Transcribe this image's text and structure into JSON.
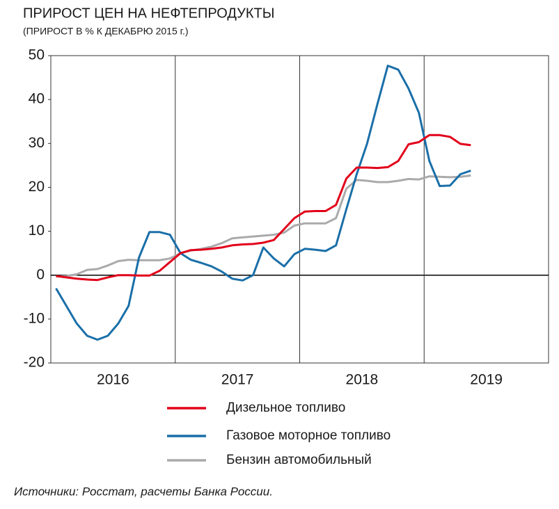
{
  "chart_data": {
    "type": "line",
    "title": "ПРИРОСТ ЦЕН НА НЕФТЕПРОДУКТЫ",
    "subtitle": "(ПРИРОСТ В % К ДЕКАБРЮ 2015 г.)",
    "source": "Источники: Росстат, расчеты Банка России.",
    "x": [
      2016.042,
      2016.125,
      2016.208,
      2016.292,
      2016.375,
      2016.458,
      2016.542,
      2016.625,
      2016.708,
      2016.792,
      2016.875,
      2016.958,
      2017.042,
      2017.125,
      2017.208,
      2017.292,
      2017.375,
      2017.458,
      2017.542,
      2017.625,
      2017.708,
      2017.792,
      2017.875,
      2017.958,
      2018.042,
      2018.125,
      2018.208,
      2018.292,
      2018.375,
      2018.458,
      2018.542,
      2018.625,
      2018.708,
      2018.792,
      2018.875,
      2018.958,
      2019.042,
      2019.125,
      2019.208,
      2019.292,
      2019.375
    ],
    "series": [
      {
        "name": "Дизельное топливо",
        "color": "#e2001a",
        "values": [
          -0.2,
          -0.5,
          -0.8,
          -1,
          -1.1,
          -0.5,
          0,
          0,
          -0.1,
          -0.1,
          1,
          3,
          5,
          5.7,
          5.8,
          6,
          6.3,
          6.8,
          7,
          7.1,
          7.4,
          8,
          10.5,
          13,
          14.5,
          14.6,
          14.6,
          16,
          22,
          24.5,
          24.5,
          24.4,
          24.6,
          26,
          29.8,
          30.3,
          31.9,
          31.9,
          31.5,
          29.9,
          29.6
        ]
      },
      {
        "name": "Газовое моторное топливо",
        "color": "#1a6fa8",
        "values": [
          -3,
          -7,
          -11,
          -13.8,
          -14.7,
          -13.8,
          -11,
          -7,
          4,
          9.8,
          9.8,
          9.2,
          5,
          3.5,
          2.8,
          2,
          0.8,
          -0.8,
          -1.2,
          0,
          6.3,
          3.8,
          2,
          4.8,
          6,
          5.8,
          5.5,
          6.8,
          15,
          23,
          30,
          39,
          47.7,
          46.8,
          42.5,
          37,
          26,
          20.3,
          20.4,
          23,
          23.8
        ]
      },
      {
        "name": "Бензин автомобильный",
        "color": "#aaaaaa",
        "values": [
          -0.3,
          -0.2,
          0.2,
          1.2,
          1.4,
          2.2,
          3.2,
          3.5,
          3.4,
          3.4,
          3.4,
          3.8,
          5,
          5.6,
          6,
          6.5,
          7.3,
          8.4,
          8.6,
          8.8,
          9,
          9.2,
          9.7,
          11.3,
          11.8,
          11.8,
          11.8,
          13,
          19.7,
          21.7,
          21.5,
          21.2,
          21.2,
          21.5,
          21.9,
          21.8,
          22.5,
          22.4,
          22.3,
          22.4,
          22.7
        ]
      }
    ],
    "xlim": [
      2016,
      2020
    ],
    "xticks": [
      2017,
      2018,
      2019
    ],
    "year_labels": [
      2016,
      2017,
      2018,
      2019
    ],
    "ylim": [
      -20,
      50
    ],
    "yticks": [
      -20,
      -10,
      0,
      10,
      20,
      30,
      40,
      50
    ]
  }
}
